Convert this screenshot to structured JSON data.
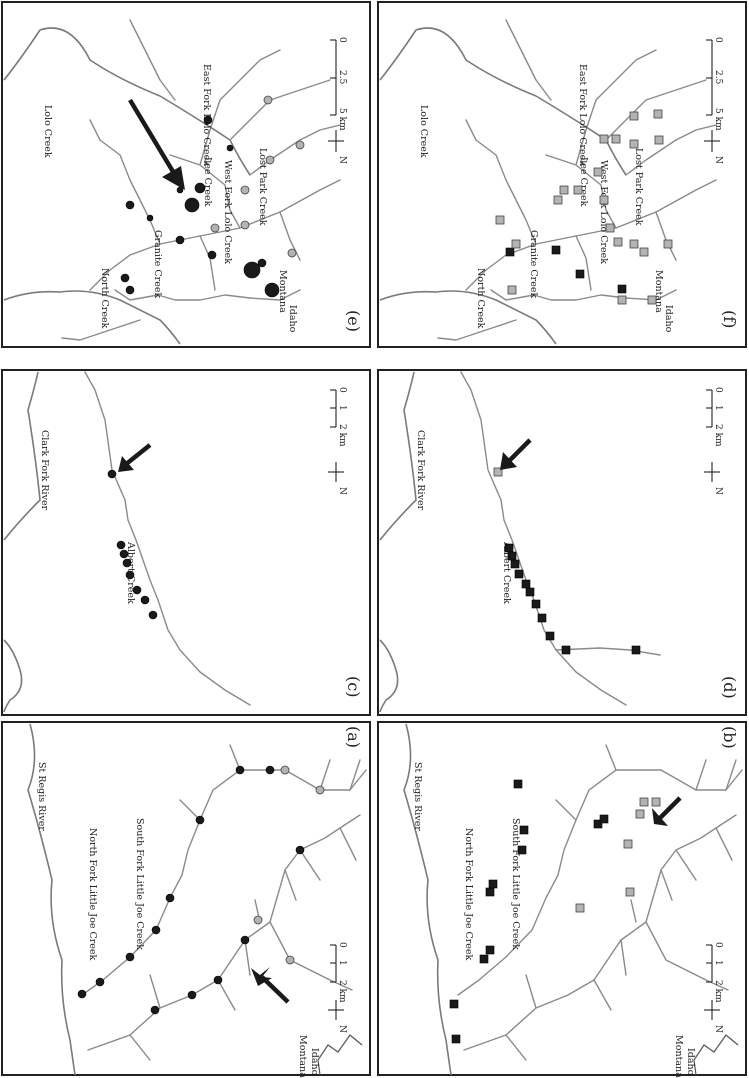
{
  "panels": {
    "a": {
      "label": "(a)",
      "rivers": [
        "St Regis River",
        "North Fork Little Joe Creek",
        "South Fork Little Joe Creek"
      ],
      "states": [
        "Montana",
        "Idaho"
      ],
      "scale": {
        "ticks": [
          "0",
          "1",
          "2 km"
        ],
        "north": "N"
      },
      "markers": [
        "black",
        "black",
        "black",
        "black",
        "black",
        "black",
        "black",
        "black",
        "black",
        "black",
        "black",
        "black",
        "black",
        "grey",
        "grey",
        "grey",
        "grey"
      ]
    },
    "b": {
      "label": "(b)",
      "rivers": [
        "St Regis River",
        "North Fork Little Joe Creek",
        "South Fork Little Joe Creek"
      ],
      "states": [
        "Montana",
        "Idaho"
      ],
      "scale": {
        "ticks": [
          "0",
          "1",
          "2 km"
        ],
        "north": "N"
      },
      "markers": [
        "black",
        "black",
        "black",
        "black",
        "black",
        "black",
        "black",
        "black",
        "black",
        "black",
        "black",
        "grey",
        "grey",
        "grey",
        "grey",
        "grey",
        "grey"
      ]
    },
    "c": {
      "label": "(c)",
      "rivers": [
        "Clark Fork River",
        "Albert Creek"
      ],
      "scale": {
        "ticks": [
          "0",
          "1",
          "2 km"
        ],
        "north": "N"
      },
      "markers": [
        "black",
        "black",
        "black",
        "black",
        "black",
        "black",
        "black",
        "black"
      ]
    },
    "d": {
      "label": "(d)",
      "rivers": [
        "Clark Fork River",
        "Albert Creek"
      ],
      "scale": {
        "ticks": [
          "0",
          "1",
          "2 km"
        ],
        "north": "N"
      },
      "markers": [
        "black",
        "black",
        "black",
        "black",
        "black",
        "black",
        "black",
        "black",
        "black",
        "black",
        "black",
        "grey"
      ]
    },
    "e": {
      "label": "(e)",
      "rivers": [
        "Lolo Creek",
        "East Fork Lolo Creek",
        "Lost Park Creek",
        "Lee Creek",
        "West Fork Lolo Creek",
        "Granite Creek",
        "North Creek"
      ],
      "states": [
        "Montana",
        "Idaho"
      ],
      "scale": {
        "ticks": [
          "0",
          "2.5",
          "5 km"
        ],
        "north": "N"
      }
    },
    "f": {
      "label": "(f)",
      "rivers": [
        "Lolo Creek",
        "East Fork Lolo Creek",
        "Lost Park Creek",
        "Lee Creek",
        "West Fork Lolo Creek",
        "Granite Creek",
        "North Creek"
      ],
      "states": [
        "Montana",
        "Idaho"
      ],
      "scale": {
        "ticks": [
          "0",
          "2.5",
          "5 km"
        ],
        "north": "N"
      }
    }
  },
  "colors": {
    "black_marker": "#1a1a1a",
    "grey_marker": "#b3b3b3",
    "river": "#8a8a8a"
  }
}
